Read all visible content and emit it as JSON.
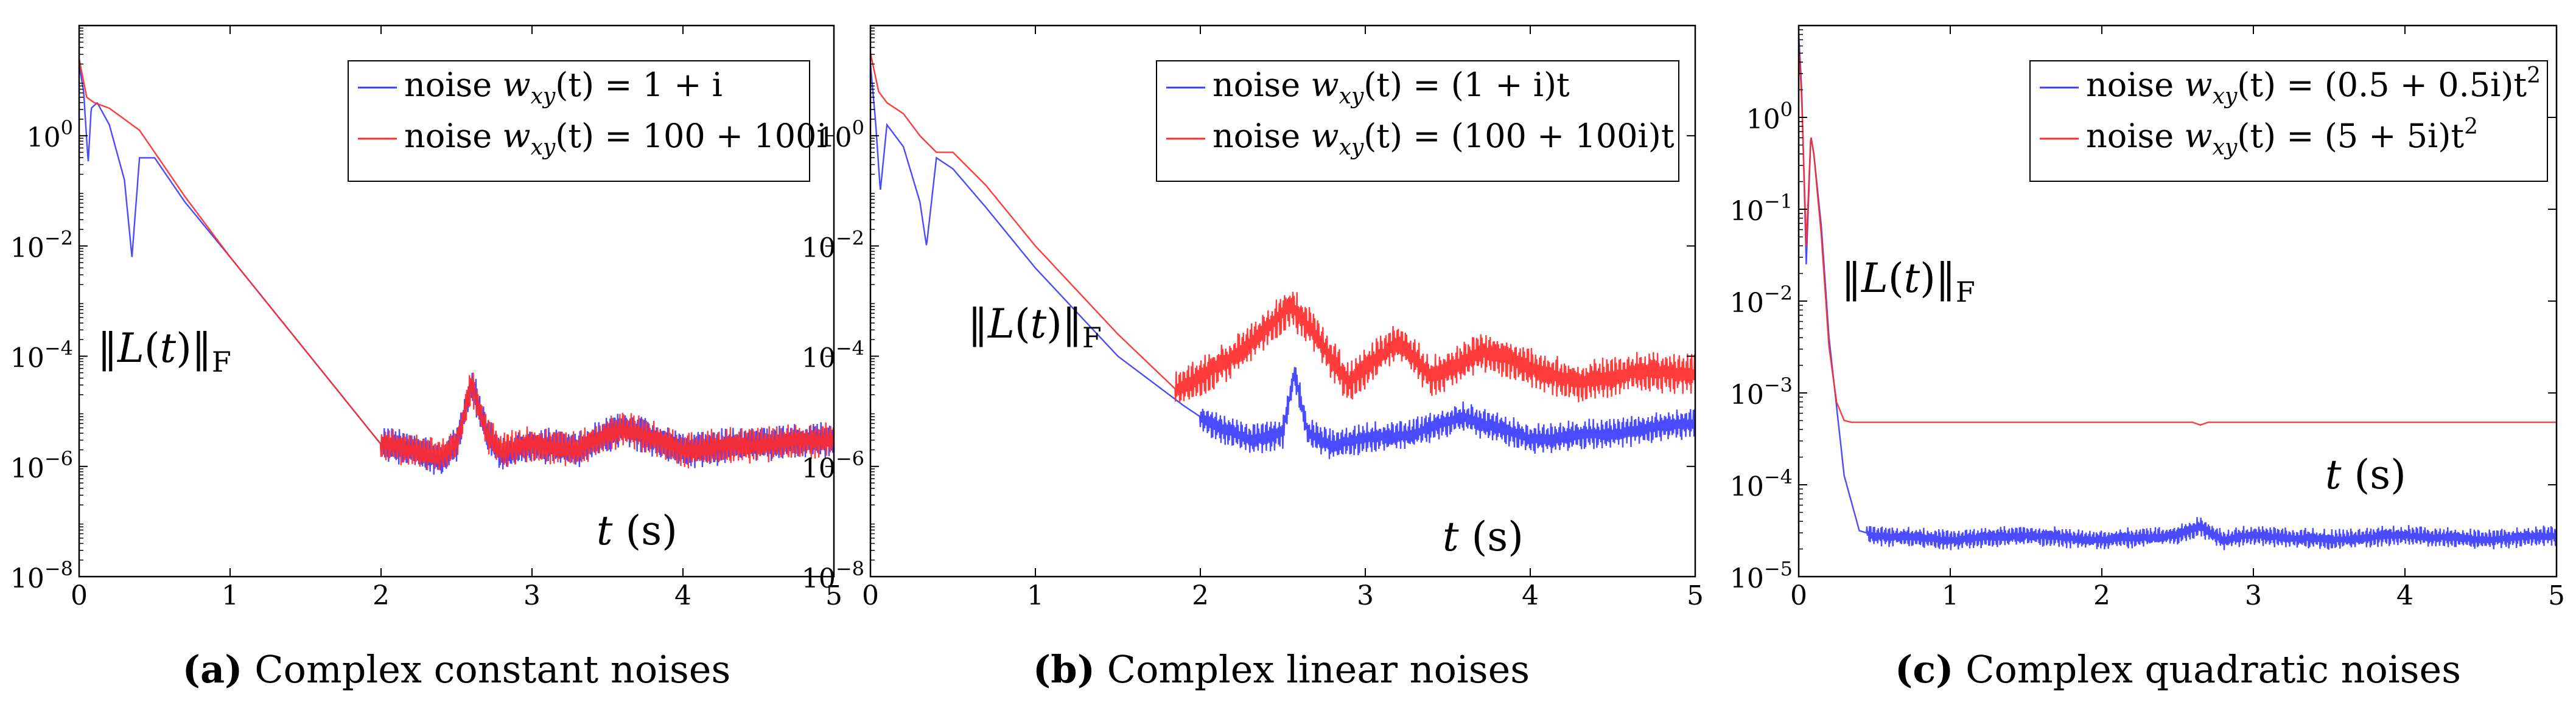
{
  "chart_data": [
    {
      "type": "line",
      "panel": "a",
      "caption_letter": "(a)",
      "caption": "Complex constant noises",
      "ylabel": "‖L(t)‖F",
      "xlabel": "t (s)",
      "yscale": "log",
      "xlim": [
        0,
        5
      ],
      "ylim_exp": [
        -8,
        2
      ],
      "xticks": [
        "0",
        "1",
        "2",
        "3",
        "4",
        "5"
      ],
      "yticks": [
        {
          "exp": 0,
          "label": "10",
          "sup": "0"
        },
        {
          "exp": -2,
          "label": "10",
          "sup": "−2"
        },
        {
          "exp": -4,
          "label": "10",
          "sup": "−4"
        },
        {
          "exp": -6,
          "label": "10",
          "sup": "−6"
        },
        {
          "exp": -8,
          "label": "10",
          "sup": "−8"
        }
      ],
      "legend_position": "top-right",
      "series": [
        {
          "name": "noise wxy(t) = 1 + i",
          "legend_prefix": "noise ",
          "legend_math": "w",
          "legend_sub": "xy",
          "legend_rest": "(t) = 1 + i",
          "color": "#3b3bff",
          "x": [
            0,
            0.03,
            0.06,
            0.08,
            0.12,
            0.2,
            0.3,
            0.35,
            0.4,
            0.5,
            0.7,
            1.0,
            1.5,
            2.0,
            2.2,
            2.4,
            2.5,
            2.6,
            2.7,
            2.8,
            3.0,
            3.3,
            3.6,
            4.0,
            4.5,
            5.0
          ],
          "log10y": [
            1.3,
            0.8,
            -0.5,
            0.5,
            0.6,
            0.2,
            -0.8,
            -2.2,
            -0.4,
            -0.4,
            -1.2,
            -2.2,
            -3.9,
            -5.6,
            -5.7,
            -5.9,
            -5.6,
            -4.5,
            -5.4,
            -5.8,
            -5.6,
            -5.7,
            -5.3,
            -5.7,
            -5.6,
            -5.5
          ],
          "noise_from": 2.0,
          "noise_amp": 0.35
        },
        {
          "name": "noise wxy(t) = 100 + 100i",
          "legend_prefix": "noise ",
          "legend_math": "w",
          "legend_sub": "xy",
          "legend_rest": "(t) = 100 + 100i",
          "color": "#ff2a2a",
          "x": [
            0,
            0.05,
            0.1,
            0.2,
            0.4,
            0.7,
            1.0,
            1.5,
            2.0,
            2.2,
            2.4,
            2.5,
            2.6,
            2.7,
            2.8,
            3.0,
            3.3,
            3.6,
            4.0,
            4.5,
            5.0
          ],
          "log10y": [
            1.4,
            0.7,
            0.6,
            0.5,
            0.1,
            -1.1,
            -2.2,
            -3.9,
            -5.6,
            -5.7,
            -5.8,
            -5.6,
            -4.5,
            -5.4,
            -5.7,
            -5.6,
            -5.7,
            -5.3,
            -5.7,
            -5.6,
            -5.5
          ],
          "noise_from": 2.0,
          "noise_amp": 0.35
        }
      ]
    },
    {
      "type": "line",
      "panel": "b",
      "caption_letter": "(b)",
      "caption": "Complex linear noises",
      "ylabel": "‖L(t)‖F",
      "xlabel": "t (s)",
      "yscale": "log",
      "xlim": [
        0,
        5
      ],
      "ylim_exp": [
        -8,
        2
      ],
      "xticks": [
        "0",
        "1",
        "2",
        "3",
        "4",
        "5"
      ],
      "yticks": [
        {
          "exp": 0,
          "label": "10",
          "sup": "0"
        },
        {
          "exp": -2,
          "label": "10",
          "sup": "−2"
        },
        {
          "exp": -4,
          "label": "10",
          "sup": "−4"
        },
        {
          "exp": -6,
          "label": "10",
          "sup": "−6"
        },
        {
          "exp": -8,
          "label": "10",
          "sup": "−8"
        }
      ],
      "legend_position": "top-right",
      "series": [
        {
          "name": "noise wxy(t) = (1 + i)t",
          "legend_prefix": "noise ",
          "legend_math": "w",
          "legend_sub": "xy",
          "legend_rest": "(t) = (1 + i)t",
          "color": "#3b3bff",
          "x": [
            0,
            0.03,
            0.06,
            0.1,
            0.2,
            0.3,
            0.34,
            0.4,
            0.5,
            0.7,
            1.0,
            1.5,
            1.9,
            2.1,
            2.3,
            2.5,
            2.57,
            2.65,
            2.8,
            3.0,
            3.3,
            3.6,
            4.0,
            4.5,
            5.0
          ],
          "log10y": [
            1.3,
            0.3,
            -1.0,
            0.2,
            -0.2,
            -1.2,
            -2.0,
            -0.4,
            -0.6,
            -1.3,
            -2.4,
            -4.0,
            -4.9,
            -5.3,
            -5.5,
            -5.4,
            -4.3,
            -5.4,
            -5.6,
            -5.5,
            -5.4,
            -5.1,
            -5.5,
            -5.4,
            -5.2
          ],
          "noise_from": 2.0,
          "noise_amp": 0.3
        },
        {
          "name": "noise wxy(t) = (100 + 100i)t",
          "legend_prefix": "noise ",
          "legend_math": "w",
          "legend_sub": "xy",
          "legend_rest": "(t) = (100 + 100i)t",
          "color": "#ff2a2a",
          "x": [
            0,
            0.05,
            0.1,
            0.2,
            0.3,
            0.4,
            0.5,
            0.7,
            1.0,
            1.5,
            1.85,
            2.0,
            2.2,
            2.4,
            2.55,
            2.7,
            2.9,
            3.2,
            3.4,
            3.7,
            4.0,
            4.3,
            4.6,
            5.0
          ],
          "log10y": [
            1.5,
            0.8,
            0.6,
            0.4,
            0.0,
            -0.3,
            -0.3,
            -0.9,
            -2.0,
            -3.6,
            -4.6,
            -4.4,
            -4.0,
            -3.5,
            -3.1,
            -3.6,
            -4.5,
            -3.7,
            -4.4,
            -3.9,
            -4.2,
            -4.5,
            -4.3,
            -4.3
          ],
          "noise_from": 1.85,
          "noise_amp": 0.4
        }
      ]
    },
    {
      "type": "line",
      "panel": "c",
      "caption_letter": "(c)",
      "caption": "Complex quadratic noises",
      "ylabel": "‖L(t)‖F",
      "xlabel": "t (s)",
      "yscale": "log",
      "xlim": [
        0,
        5
      ],
      "ylim_exp": [
        -5,
        1
      ],
      "xticks": [
        "0",
        "1",
        "2",
        "3",
        "4",
        "5"
      ],
      "yticks": [
        {
          "exp": 0,
          "label": "10",
          "sup": "0"
        },
        {
          "exp": -1,
          "label": "10",
          "sup": "−1"
        },
        {
          "exp": -2,
          "label": "10",
          "sup": "−2"
        },
        {
          "exp": -3,
          "label": "10",
          "sup": "−3"
        },
        {
          "exp": -4,
          "label": "10",
          "sup": "−4"
        },
        {
          "exp": -5,
          "label": "10",
          "sup": "−5"
        }
      ],
      "legend_position": "top-right",
      "series": [
        {
          "name": "noise wxy(t) = (0.5 + 0.5i)t²",
          "legend_prefix": "noise ",
          "legend_math": "w",
          "legend_sub": "xy",
          "legend_rest": "(t) = (0.5 + 0.5i)t",
          "legend_sup": "2",
          "color": "#3b3bff",
          "x": [
            0,
            0.02,
            0.05,
            0.08,
            0.1,
            0.15,
            0.2,
            0.3,
            0.4,
            0.5,
            1.0,
            1.5,
            2.0,
            2.5,
            2.65,
            2.8,
            3.0,
            3.5,
            4.0,
            4.5,
            5.0
          ],
          "log10y": [
            0.9,
            0.3,
            -1.6,
            -0.2,
            -0.4,
            -1.2,
            -2.4,
            -3.9,
            -4.5,
            -4.55,
            -4.6,
            -4.55,
            -4.6,
            -4.55,
            -4.45,
            -4.6,
            -4.55,
            -4.6,
            -4.55,
            -4.6,
            -4.55
          ],
          "noise_from": 0.45,
          "noise_amp": 0.12
        },
        {
          "name": "noise wxy(t) = (5 + 5i)t²",
          "legend_prefix": "noise ",
          "legend_math": "w",
          "legend_sub": "xy",
          "legend_rest": "(t) = (5 + 5i)t",
          "legend_sup": "2",
          "color": "#ff2a2a",
          "x": [
            0,
            0.02,
            0.05,
            0.08,
            0.1,
            0.15,
            0.2,
            0.25,
            0.3,
            0.35,
            0.5,
            1.0,
            2.0,
            2.6,
            2.65,
            2.7,
            3.0,
            4.0,
            5.0
          ],
          "log10y": [
            0.8,
            0.2,
            -1.4,
            -0.2,
            -0.4,
            -1.3,
            -2.5,
            -3.1,
            -3.3,
            -3.32,
            -3.32,
            -3.32,
            -3.32,
            -3.32,
            -3.35,
            -3.32,
            -3.32,
            -3.32,
            -3.32
          ],
          "noise_from": 99,
          "noise_amp": 0
        }
      ]
    }
  ]
}
